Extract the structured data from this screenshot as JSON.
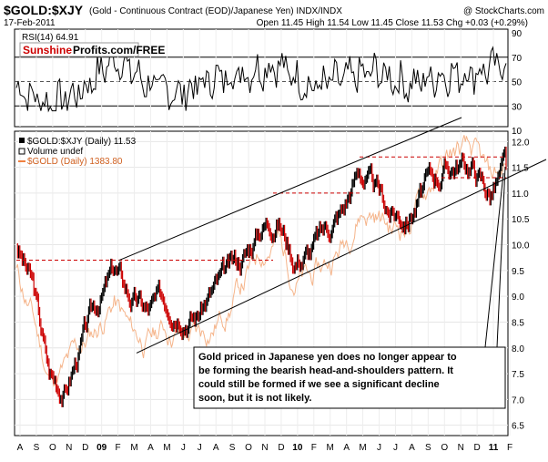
{
  "header": {
    "symbol": "$GOLD:$XJY",
    "contract": "(Gold - Continuous Contract (EOD)/Japanese Yen) INDX/INDX",
    "watermark": "@ StockCharts.com",
    "date": "17-Feb-2011",
    "quote": "Open 11.45  High 11.54  Low 11.45  Close 11.53  Chg +0.03 (+0.29%)"
  },
  "rsi_panel": {
    "label": "RSI(14) 64.91",
    "logo_part1": "Sunshine",
    "logo_part2": "Profits.com/FREE",
    "ticks": [
      "90",
      "70",
      "50",
      "30",
      "10"
    ]
  },
  "price_panel": {
    "legend_main": "$GOLD:$XJY (Daily) 11.53",
    "legend_volume": "Volume undef",
    "legend_gold": "$GOLD (Daily) 1383.80",
    "ticks": [
      "12.0",
      "11.5",
      "11.0",
      "10.5",
      "10.0",
      "9.5",
      "9.0",
      "8.5",
      "8.0",
      "7.5",
      "7.0",
      "6.5"
    ]
  },
  "annotation": {
    "line1": "Gold priced in Japanese yen does no longer appear to",
    "line2": "be forming the bearish head-and-shoulders pattern. It",
    "line3": "could still be formed if we see a significant decline",
    "line4": "soon, but it is not likely."
  },
  "x_axis": {
    "labels": [
      "A",
      "S",
      "O",
      "N",
      "D",
      "09",
      "F",
      "M",
      "A",
      "M",
      "J",
      "J",
      "A",
      "S",
      "O",
      "N",
      "D",
      "10",
      "F",
      "M",
      "A",
      "M",
      "J",
      "J",
      "A",
      "S",
      "O",
      "N",
      "D",
      "11",
      "F"
    ],
    "bold": [
      "09",
      "10",
      "11"
    ]
  },
  "colors": {
    "price_up": "#000000",
    "price_down": "#cc0000",
    "gold_overlay": "#f5b48a",
    "resistance": "#cc0000",
    "logo_red": "#cc0000"
  },
  "chart_data": [
    {
      "type": "line",
      "title": "RSI(14) 64.91",
      "ylim": [
        10,
        90
      ],
      "reference_lines": [
        70,
        50,
        30
      ],
      "x": [
        "Aug 2008",
        "Oct 2008",
        "Dec 2008",
        "Feb 2009",
        "Apr 2009",
        "Jun 2009",
        "Aug 2009",
        "Oct 2009",
        "Dec 2009",
        "Feb 2010",
        "Apr 2010",
        "Jun 2010",
        "Aug 2010",
        "Oct 2010",
        "Dec 2010",
        "Feb 2011"
      ],
      "series": [
        {
          "values": [
            45,
            30,
            42,
            70,
            48,
            40,
            52,
            57,
            64,
            45,
            52,
            58,
            47,
            55,
            57,
            65
          ]
        }
      ]
    },
    {
      "type": "line",
      "title": "$GOLD:$XJY (Daily) 11.53",
      "ylim": [
        6.3,
        12.2
      ],
      "x": [
        "Aug 2008",
        "Sep 2008",
        "Oct 2008",
        "Nov 2008",
        "Dec 2008",
        "Jan 2009",
        "Feb 2009",
        "Mar 2009",
        "Apr 2009",
        "May 2009",
        "Jun 2009",
        "Jul 2009",
        "Aug 2009",
        "Sep 2009",
        "Oct 2009",
        "Nov 2009",
        "Dec 2009",
        "Jan 2010",
        "Feb 2010",
        "Mar 2010",
        "Apr 2010",
        "May 2010",
        "Jun 2010",
        "Jul 2010",
        "Aug 2010",
        "Sep 2010",
        "Oct 2010",
        "Nov 2010",
        "Dec 2010",
        "Jan 2011",
        "Feb 2011"
      ],
      "series": [
        {
          "name": "$GOLD:$XJY (Daily) 11.53",
          "values": [
            10.0,
            9.2,
            7.5,
            7.2,
            8.1,
            8.9,
            9.5,
            9.0,
            8.7,
            8.9,
            8.9,
            8.7,
            9.1,
            9.4,
            9.8,
            10.4,
            10.6,
            9.8,
            9.9,
            10.3,
            10.7,
            11.5,
            11.0,
            10.6,
            10.6,
            11.1,
            11.4,
            11.6,
            11.5,
            11.0,
            11.53
          ]
        },
        {
          "name": "$GOLD (Daily) 1383.80",
          "values": [
            9.5,
            8.6,
            7.4,
            7.6,
            8.0,
            8.4,
            8.9,
            8.3,
            8.1,
            8.4,
            8.3,
            8.2,
            8.4,
            8.8,
            9.3,
            9.9,
            10.1,
            9.4,
            9.3,
            9.6,
            10.0,
            10.7,
            10.6,
            10.3,
            10.4,
            11.0,
            11.5,
            11.8,
            11.7,
            11.2,
            11.55
          ]
        }
      ],
      "reference_lines": [
        9.7,
        11.0,
        11.7,
        11.3
      ],
      "trendlines": [
        {
          "from": [
            "Feb 2009",
            9.7
          ],
          "to": [
            "Dec 2010",
            12.2
          ]
        },
        {
          "from": [
            "Mar 2009",
            7.9
          ],
          "to": [
            "Feb 2011",
            11.3
          ]
        }
      ]
    }
  ]
}
